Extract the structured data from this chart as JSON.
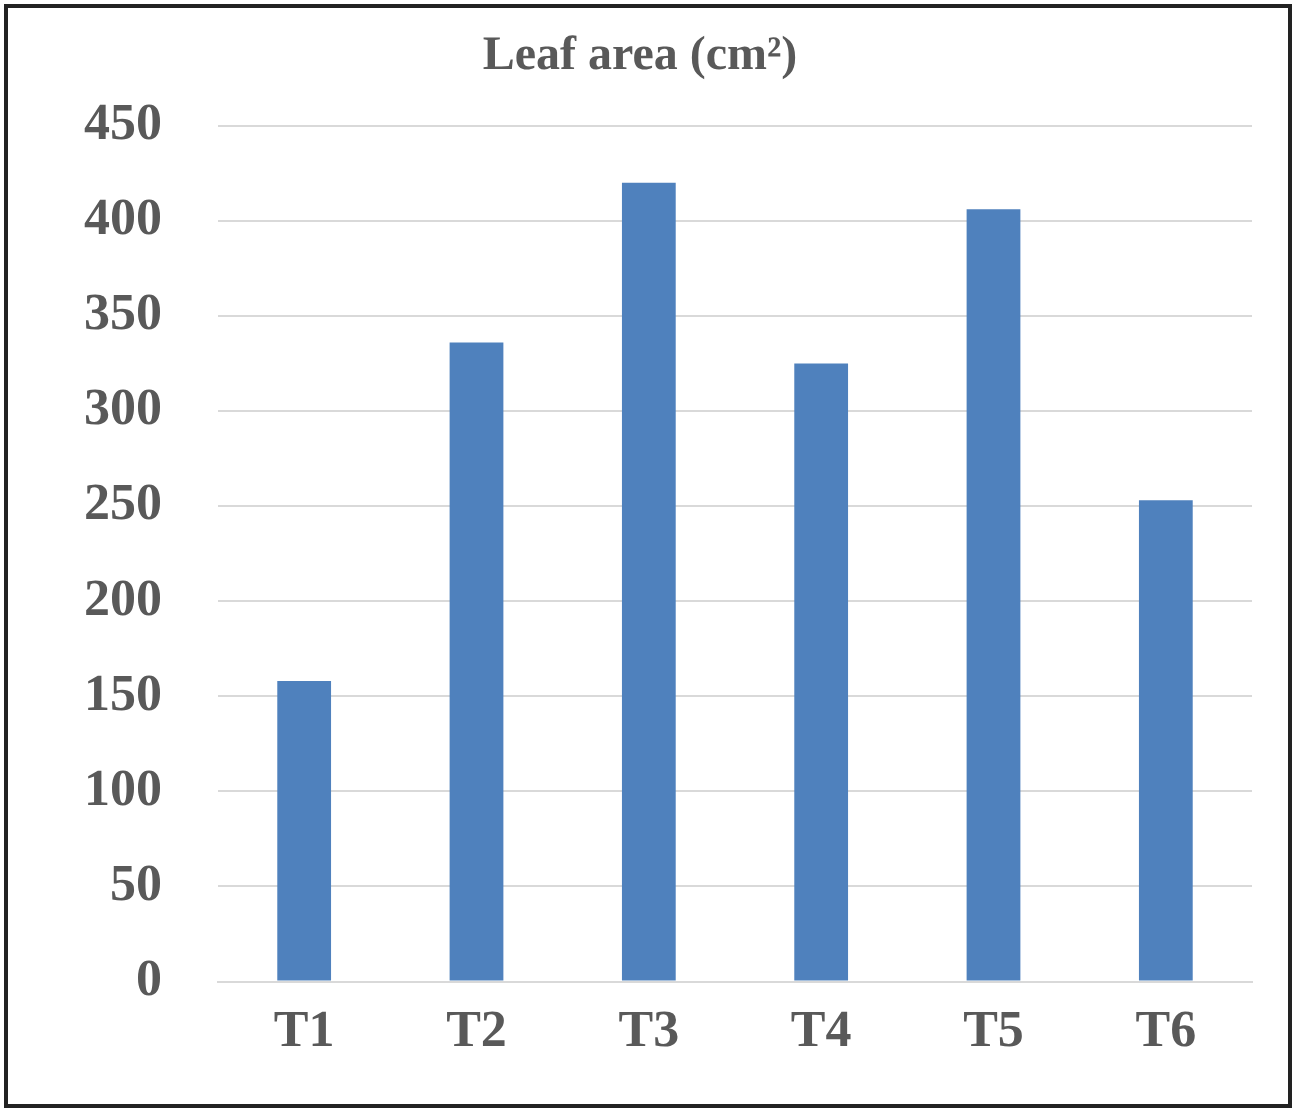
{
  "chart_data": {
    "type": "bar",
    "title": "Leaf area (cm²)",
    "categories": [
      "T1",
      "T2",
      "T3",
      "T4",
      "T5",
      "T6"
    ],
    "values": [
      158,
      336,
      420,
      325,
      406,
      253
    ],
    "color": "#4f81bd",
    "ylim": [
      0,
      450
    ],
    "yticks": [
      0,
      50,
      100,
      150,
      200,
      250,
      300,
      350,
      400,
      450
    ],
    "grid": "y"
  }
}
